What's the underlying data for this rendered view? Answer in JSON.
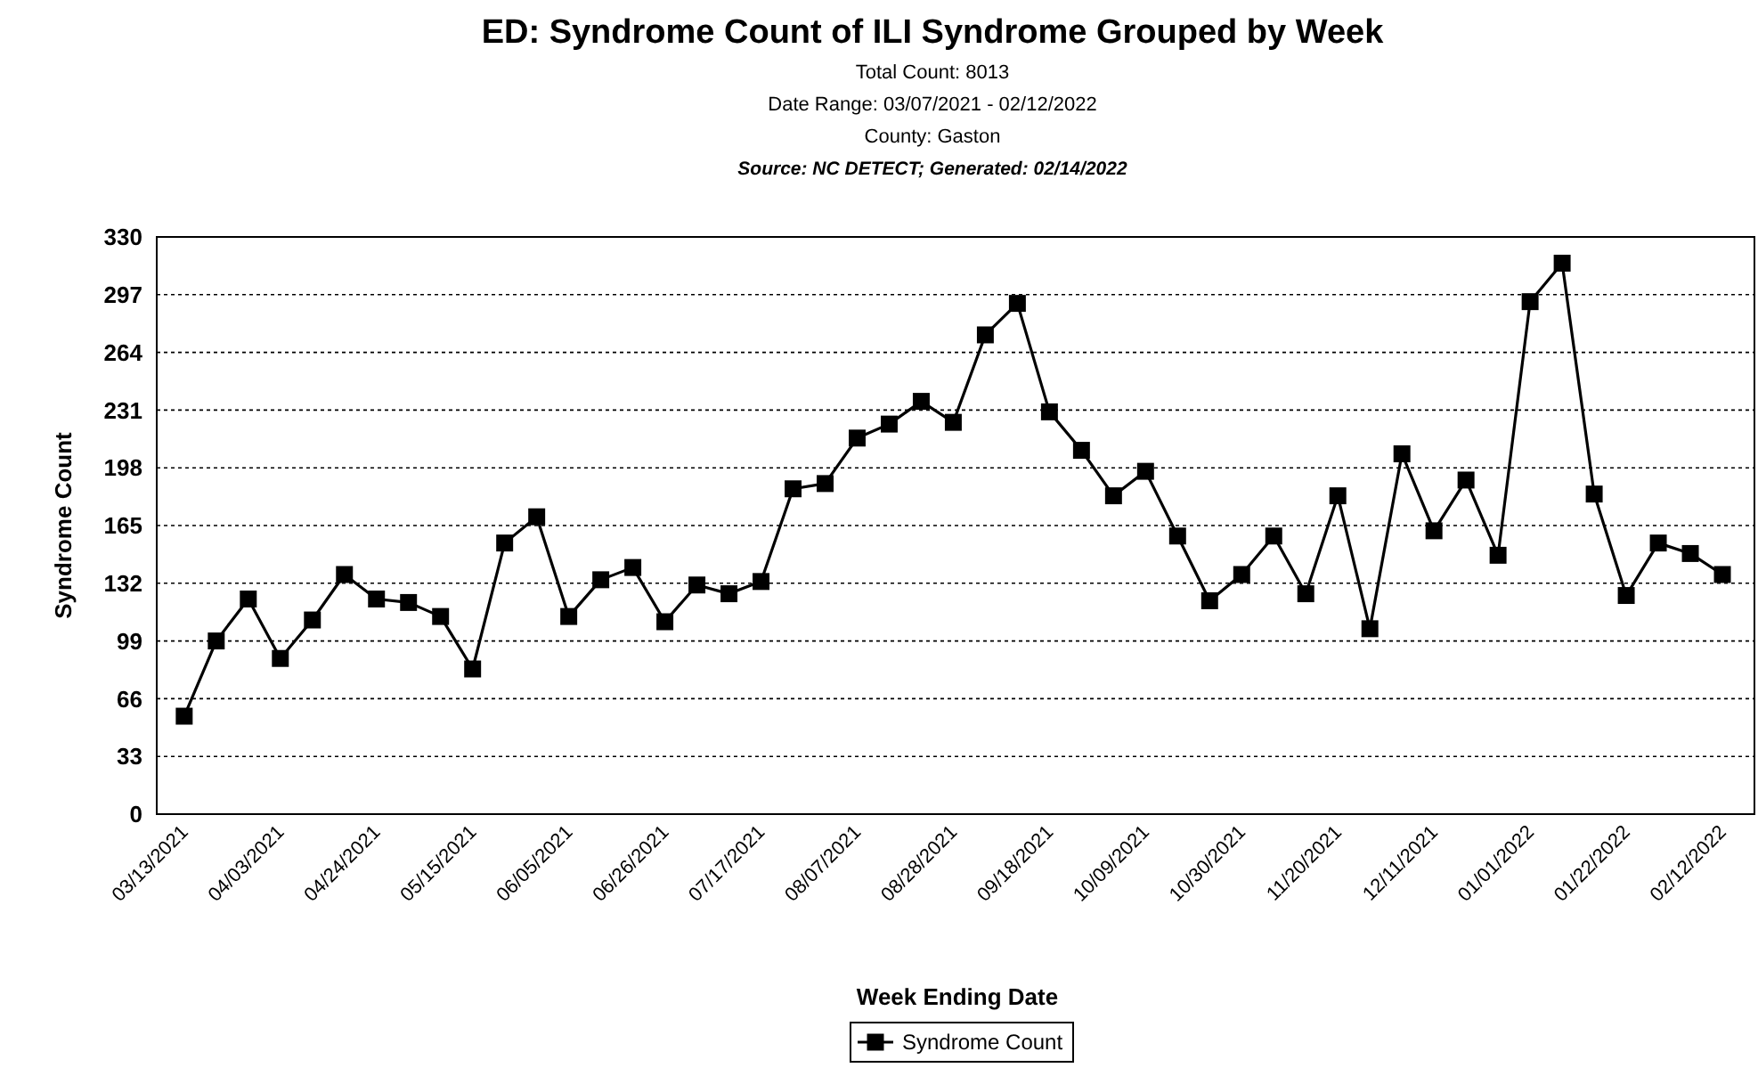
{
  "chart_data": {
    "type": "line",
    "title": "ED: Syndrome Count of ILI Syndrome Grouped by Week",
    "subtitle": "Total Count: 8013\nDate Range: 03/07/2021 - 02/12/2022\nCounty: Gaston",
    "annotations": [
      "Source: NC DETECT; Generated: 02/14/2022"
    ],
    "xlabel": "Week Ending Date",
    "ylabel": "Syndrome Count",
    "x": [
      "2021-03-13",
      "2021-03-20",
      "2021-03-27",
      "2021-04-03",
      "2021-04-10",
      "2021-04-17",
      "2021-04-24",
      "2021-05-01",
      "2021-05-08",
      "2021-05-15",
      "2021-05-22",
      "2021-05-29",
      "2021-06-05",
      "2021-06-12",
      "2021-06-19",
      "2021-06-26",
      "2021-07-03",
      "2021-07-10",
      "2021-07-17",
      "2021-07-24",
      "2021-07-31",
      "2021-08-07",
      "2021-08-14",
      "2021-08-21",
      "2021-08-28",
      "2021-09-04",
      "2021-09-11",
      "2021-09-18",
      "2021-09-25",
      "2021-10-02",
      "2021-10-09",
      "2021-10-16",
      "2021-10-23",
      "2021-10-30",
      "2021-11-06",
      "2021-11-13",
      "2021-11-20",
      "2021-11-27",
      "2021-12-04",
      "2021-12-11",
      "2021-12-18",
      "2021-12-25",
      "2022-01-01",
      "2022-01-08",
      "2022-01-15",
      "2022-01-22",
      "2022-01-29",
      "2022-02-05",
      "2022-02-12"
    ],
    "series": [
      {
        "name": "Syndrome Count",
        "color": "#000000",
        "values": [
          56,
          99,
          123,
          89,
          111,
          137,
          123,
          121,
          113,
          83,
          155,
          170,
          113,
          134,
          141,
          110,
          131,
          126,
          133,
          186,
          189,
          215,
          223,
          236,
          224,
          274,
          292,
          230,
          208,
          182,
          196,
          159,
          122,
          137,
          159,
          126,
          182,
          106,
          206,
          162,
          191,
          148,
          293,
          315,
          183,
          125,
          155,
          149,
          137
        ]
      }
    ],
    "xlim": [
      "2021-03-07",
      "2022-02-19"
    ],
    "xticks": [
      {
        "value": "2021-03-13",
        "label": "03/13/2021"
      },
      {
        "value": "2021-04-03",
        "label": "04/03/2021"
      },
      {
        "value": "2021-04-24",
        "label": "04/24/2021"
      },
      {
        "value": "2021-05-15",
        "label": "05/15/2021"
      },
      {
        "value": "2021-06-05",
        "label": "06/05/2021"
      },
      {
        "value": "2021-06-26",
        "label": "06/26/2021"
      },
      {
        "value": "2021-07-17",
        "label": "07/17/2021"
      },
      {
        "value": "2021-08-07",
        "label": "08/07/2021"
      },
      {
        "value": "2021-08-28",
        "label": "08/28/2021"
      },
      {
        "value": "2021-09-18",
        "label": "09/18/2021"
      },
      {
        "value": "2021-10-09",
        "label": "10/09/2021"
      },
      {
        "value": "2021-10-30",
        "label": "10/30/2021"
      },
      {
        "value": "2021-11-20",
        "label": "11/20/2021"
      },
      {
        "value": "2021-12-11",
        "label": "12/11/2021"
      },
      {
        "value": "2022-01-01",
        "label": "01/01/2022"
      },
      {
        "value": "2022-01-22",
        "label": "01/22/2022"
      },
      {
        "value": "2022-02-12",
        "label": "02/12/2022"
      }
    ],
    "ylim": [
      0,
      330
    ],
    "yticks": [
      0,
      33,
      66,
      99,
      132,
      165,
      198,
      231,
      264,
      297,
      330
    ],
    "grid": "y",
    "legend": "bottom",
    "marker": "square",
    "line_style": "solid"
  }
}
